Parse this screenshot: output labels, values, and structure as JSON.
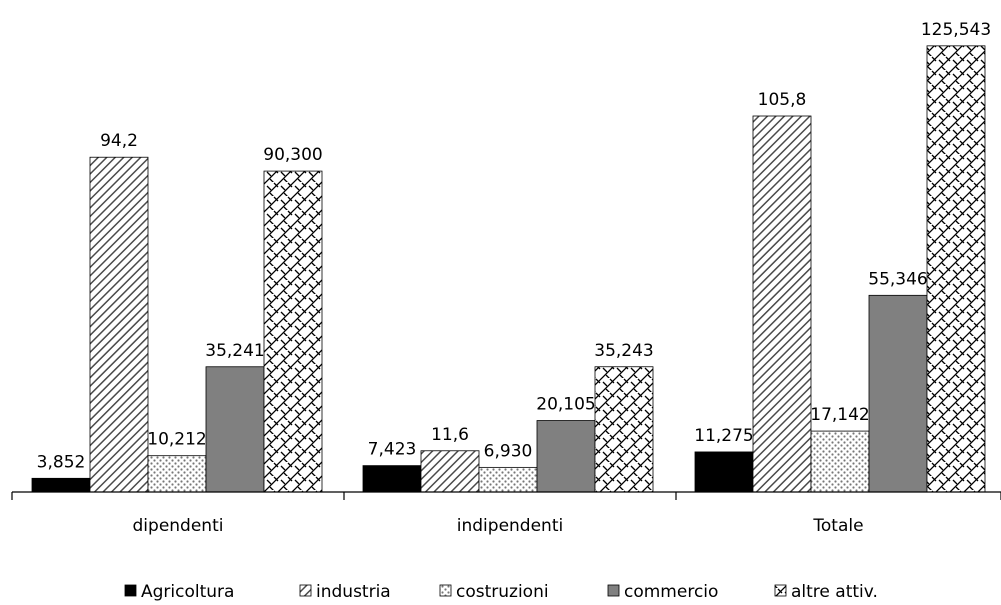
{
  "chart_data": {
    "type": "bar",
    "categories": [
      "dipendenti",
      "indipendenti",
      "Totale"
    ],
    "series": [
      {
        "name": "Agricoltura",
        "values": [
          3.852,
          7.423,
          11.275
        ],
        "labels": [
          "3,852",
          "7,423",
          "11,275"
        ],
        "pattern": "solid",
        "color": "#000000"
      },
      {
        "name": "industria",
        "values": [
          94.2,
          11.6,
          105.8
        ],
        "labels": [
          "94,2",
          "11,6",
          "105,8"
        ],
        "pattern": "diagonal",
        "color": "#555555"
      },
      {
        "name": "costruzioni",
        "values": [
          10.212,
          6.93,
          17.142
        ],
        "labels": [
          "10,212",
          "6,930",
          "17,142"
        ],
        "pattern": "dots",
        "color": "#888888"
      },
      {
        "name": "commercio",
        "values": [
          35.241,
          20.105,
          55.346
        ],
        "labels": [
          "35,241",
          "20,105",
          "55,346"
        ],
        "pattern": "solid",
        "color": "#808080"
      },
      {
        "name": "altre attiv.",
        "values": [
          90.3,
          35.243,
          125.543
        ],
        "labels": [
          "90,300",
          "35,243",
          "125,543"
        ],
        "pattern": "crosshatch",
        "color": "#000000"
      }
    ],
    "ylim": [
      0,
      130
    ],
    "grid": false,
    "legend_position": "bottom"
  }
}
